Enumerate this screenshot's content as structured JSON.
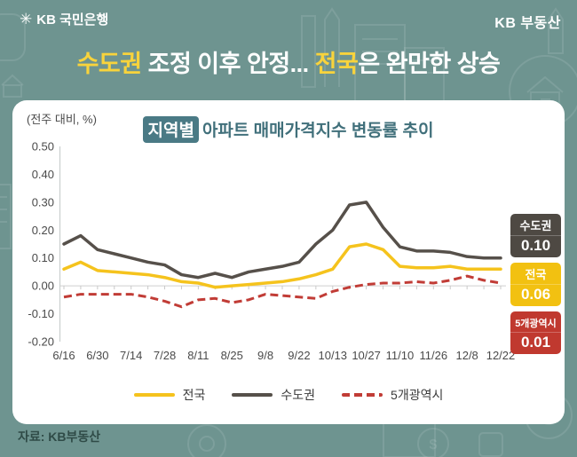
{
  "header": {
    "star_icon": "kb-star",
    "bank_name": "KB 국민은행",
    "brand_right": "KB 부동산"
  },
  "headline": {
    "part1": "수도권",
    "part2": " 조정 이후 안정... ",
    "part3": "전국",
    "part4": "은 완만한 상승"
  },
  "chart_card": {
    "unit_label": "(전주 대비, %)",
    "title_badge": "지역별",
    "title_rest": "아파트 매매가격지수 변동률 추이"
  },
  "chart_data": {
    "type": "line",
    "title": "지역별 아파트 매매가격지수 변동률 추이",
    "unit": "(전주 대비, %)",
    "ylim": [
      -0.2,
      0.5
    ],
    "ytick_step": 0.1,
    "grid": "zero-line-only",
    "legend_position": "bottom",
    "n_points": 27,
    "x_label_every": 2,
    "x_labels": [
      "6/16",
      "6/30",
      "7/14",
      "7/28",
      "8/11",
      "8/25",
      "9/8",
      "9/22",
      "10/13",
      "10/27",
      "11/10",
      "11/26",
      "12/8",
      "12/22"
    ],
    "series": [
      {
        "name": "전국",
        "color": "#F5C31D",
        "style": "solid",
        "values": [
          0.06,
          0.085,
          0.055,
          0.05,
          0.045,
          0.04,
          0.03,
          0.015,
          0.01,
          -0.005,
          0.0,
          0.005,
          0.01,
          0.015,
          0.025,
          0.04,
          0.06,
          0.14,
          0.15,
          0.13,
          0.07,
          0.065,
          0.065,
          0.07,
          0.06,
          0.06,
          0.06
        ]
      },
      {
        "name": "수도권",
        "color": "#56504A",
        "style": "solid",
        "values": [
          0.15,
          0.18,
          0.13,
          0.115,
          0.1,
          0.085,
          0.075,
          0.04,
          0.03,
          0.045,
          0.03,
          0.05,
          0.06,
          0.07,
          0.085,
          0.15,
          0.2,
          0.29,
          0.3,
          0.21,
          0.14,
          0.125,
          0.125,
          0.12,
          0.105,
          0.1,
          0.1
        ]
      },
      {
        "name": "5개광역시",
        "color": "#C13C36",
        "style": "dashed",
        "values": [
          -0.04,
          -0.03,
          -0.03,
          -0.03,
          -0.03,
          -0.04,
          -0.055,
          -0.075,
          -0.05,
          -0.045,
          -0.06,
          -0.05,
          -0.03,
          -0.035,
          -0.04,
          -0.045,
          -0.02,
          -0.005,
          0.005,
          0.01,
          0.01,
          0.015,
          0.01,
          0.02,
          0.035,
          0.02,
          0.01
        ]
      }
    ],
    "end_labels": [
      {
        "name": "수도권",
        "value": "0.10",
        "color": "#4E4943"
      },
      {
        "name": "전국",
        "value": "0.06",
        "color": "#F2C111"
      },
      {
        "name": "5개광역시",
        "value": "0.01",
        "color": "#C0392F"
      }
    ]
  },
  "footer": {
    "source": "자료: KB부동산"
  },
  "colors": {
    "background": "#6E9490",
    "card": "#FFFFFF",
    "headline_accent": "#F8D33C",
    "headline_text": "#FFFFFF",
    "chart_title": "#41707B",
    "badge_bg": "#4A7A85",
    "axis_text": "#4A4A4A",
    "axis_line": "#C9C9C9"
  }
}
